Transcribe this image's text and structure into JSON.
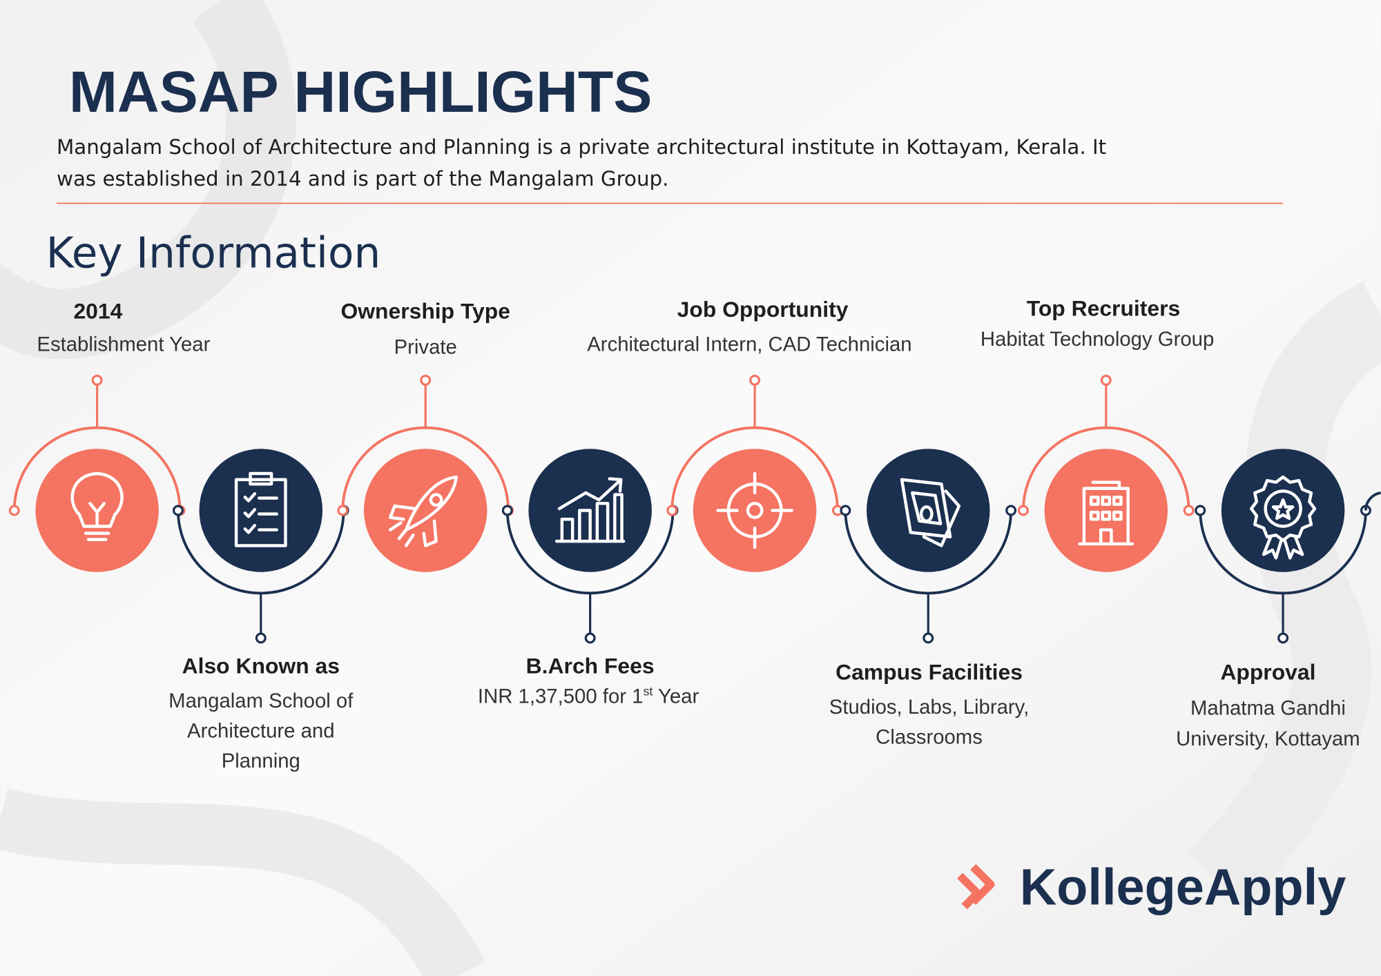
{
  "header": {
    "title": "MASAP HIGHLIGHTS",
    "description": [
      "Mangalam School of Architecture and Planning is a private architectural institute in Kottayam, Kerala. It",
      "was established in 2014 and is part of the Mangalam Group."
    ]
  },
  "section_title": "Key Information",
  "items": [
    {
      "title": "2014",
      "lines": [
        "Establishment Year"
      ]
    },
    {
      "title": "Also Known as",
      "lines": [
        "Mangalam School of",
        "Architecture and",
        "Planning"
      ]
    },
    {
      "title": "Ownership Type",
      "lines": [
        "Private"
      ]
    },
    {
      "title": "B.Arch Fees",
      "lines": [
        "INR 1,37,500 for 1"
      ],
      "sup": "st",
      "after": "Year"
    },
    {
      "title": "Job Opportunity",
      "lines": [
        "Architectural Intern,  CAD Technician"
      ]
    },
    {
      "title": "Campus Facilities",
      "lines": [
        "Studios, Labs, Library,",
        "Classrooms"
      ]
    },
    {
      "title": "Top Recruiters",
      "lines": [
        "Habitat Technology Group"
      ]
    },
    {
      "title": "Approval",
      "lines": [
        "Mahatma Gandhi",
        "University, Kottayam"
      ]
    }
  ],
  "logo": "KollegeApply"
}
